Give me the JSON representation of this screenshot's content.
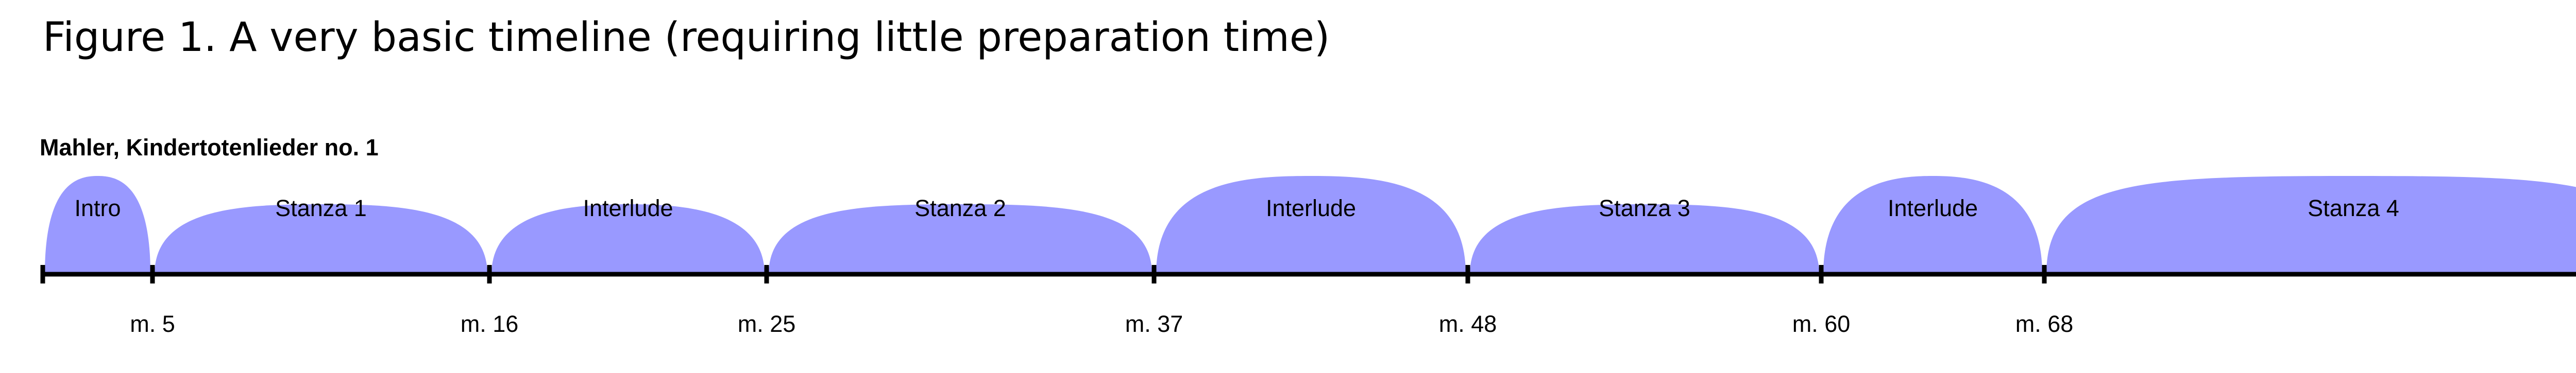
{
  "figure": {
    "title": "Figure 1. A very basic timeline (requiring little preparation time)"
  },
  "timeline": {
    "piece": "Mahler, Kindertotenlieder no. 1",
    "colors": {
      "section_fill": "#9999ff",
      "axis": "#000000"
    },
    "sections": [
      {
        "label": "Intro",
        "start": 0,
        "end": 5
      },
      {
        "label": "Stanza 1",
        "start": 5,
        "end": 16
      },
      {
        "label": "Interlude",
        "start": 16,
        "end": 25
      },
      {
        "label": "Stanza 2",
        "start": 25,
        "end": 37
      },
      {
        "label": "Interlude",
        "start": 37,
        "end": 48
      },
      {
        "label": "Stanza 3",
        "start": 48,
        "end": 60
      },
      {
        "label": "Interlude",
        "start": 60,
        "end": 68
      },
      {
        "label": "Stanza 4",
        "start": 68,
        "end": null
      }
    ],
    "measure_labels": [
      "m. 5",
      "m. 16",
      "m. 25",
      "m. 37",
      "m. 48",
      "m. 60",
      "m. 68"
    ]
  }
}
